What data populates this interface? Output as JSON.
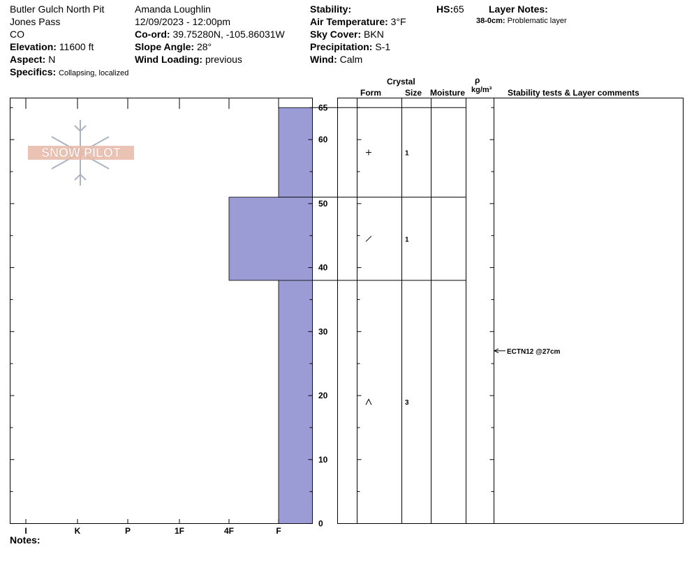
{
  "header": {
    "location": "Butler Gulch North Pit",
    "area": "Jones Pass",
    "state": "CO",
    "elevation_label": "Elevation:",
    "elevation_value": "11600 ft",
    "aspect_label": "Aspect:",
    "aspect_value": "N",
    "specifics_label": "Specifics:",
    "specifics_value": "Collapsing, localized",
    "observer": "Amanda Loughlin",
    "datetime": "12/09/2023 - 12:00pm",
    "coord_label": "Co-ord:",
    "coord_value": "39.75280N, -105.86031W",
    "slope_label": "Slope Angle:",
    "slope_value": "28°",
    "wind_loading_label": "Wind Loading:",
    "wind_loading_value": "previous",
    "stability_label": "Stability:",
    "air_temp_label": "Air Temperature:",
    "air_temp_value": "3°F",
    "sky_label": "Sky Cover:",
    "sky_value": "BKN",
    "precip_label": "Precipitation:",
    "precip_value": "S-1",
    "wind_label": "Wind:",
    "wind_value": "Calm",
    "hs_label": "HS:",
    "hs_value": "65",
    "layer_notes_label": "Layer Notes:",
    "layer_note_range": "38-0cm:",
    "layer_note_text": "Problematic layer"
  },
  "logo": {
    "text": "SNOW PILOT"
  },
  "columns": {
    "crystal": "Crystal",
    "form": "Form",
    "size": "Size",
    "moisture": "Moisture",
    "rho": "ρ",
    "density": "kg/m³",
    "tests": "Stability tests & Layer comments"
  },
  "hardness_axis": [
    "I",
    "K",
    "P",
    "1F",
    "4F",
    "F"
  ],
  "depth_axis": [
    "65",
    "60",
    "50",
    "40",
    "30",
    "20",
    "10",
    "0"
  ],
  "layers": [
    {
      "top": 65,
      "bottom": 51,
      "hardness": "F",
      "form": "+",
      "size": "1"
    },
    {
      "top": 51,
      "bottom": 38,
      "hardness": "4F",
      "form": "/",
      "size": "1"
    },
    {
      "top": 38,
      "bottom": 0,
      "hardness": "F",
      "form": "^",
      "size": "3"
    }
  ],
  "stability_test": {
    "text": "ECTN12 @27cm",
    "depth": 27
  },
  "notes_label": "Notes:",
  "colors": {
    "layer_fill": "#9b9bd6",
    "logo": "#e8b8a8"
  }
}
